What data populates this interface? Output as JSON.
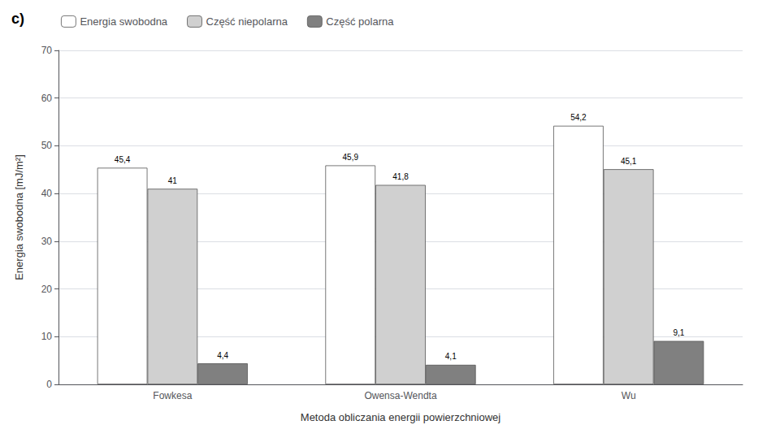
{
  "chart_data": {
    "type": "bar",
    "annotations": [
      "c)"
    ],
    "categories": [
      "Fowkesa",
      "Owensa-Wendta",
      "Wu"
    ],
    "series": [
      {
        "name": "Energia swobodna",
        "color": "#ffffff",
        "values": [
          45.4,
          45.9,
          54.2
        ],
        "value_labels": [
          "45,4",
          "45,9",
          "54,2"
        ]
      },
      {
        "name": "Część niepolarna",
        "color": "#d0d0d0",
        "values": [
          41.0,
          41.8,
          45.1
        ],
        "value_labels": [
          "41",
          "41,8",
          "45,1"
        ]
      },
      {
        "name": "Część polarna",
        "color": "#808080",
        "values": [
          4.4,
          4.1,
          9.1
        ],
        "value_labels": [
          "4,4",
          "4,1",
          "9,1"
        ]
      }
    ],
    "xlabel": "Metoda obliczania energii powierzchniowej",
    "ylabel": "Energia swobodna [mJ/m²]",
    "ylim": [
      0,
      70
    ],
    "yticks": [
      0,
      10,
      20,
      30,
      40,
      50,
      60,
      70
    ],
    "grid": true,
    "legend": "top",
    "data_labels": true
  }
}
